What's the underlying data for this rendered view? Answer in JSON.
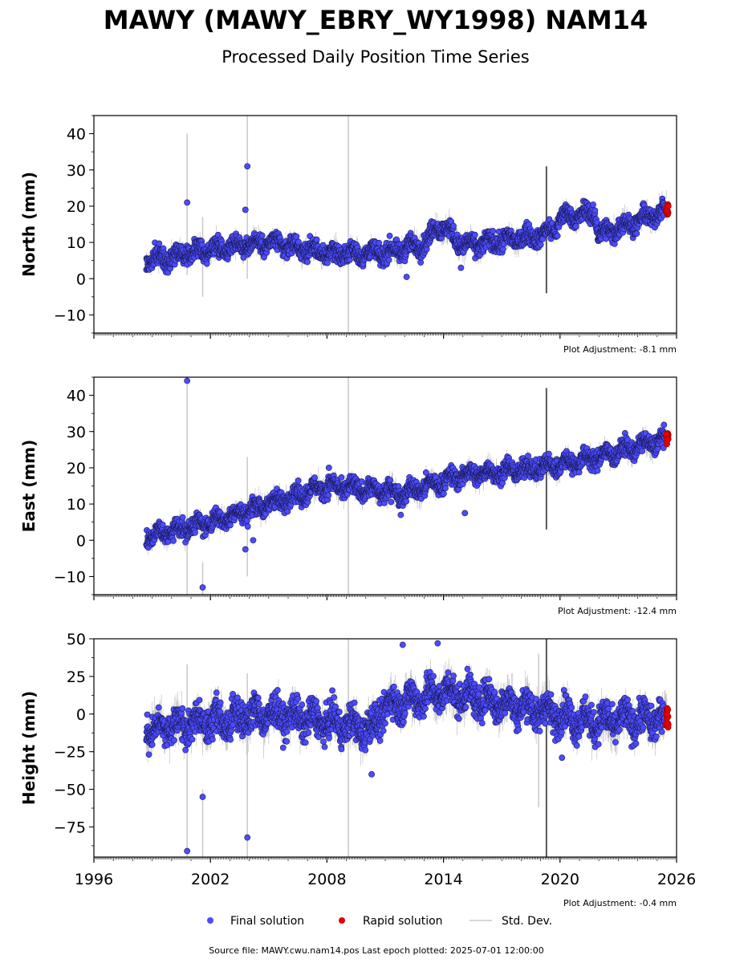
{
  "title": "MAWY (MAWY_EBRY_WY1998) NAM14",
  "subtitle": "Processed Daily Position Time Series",
  "legend": {
    "final": "Final solution",
    "rapid": "Rapid solution",
    "std": "Std. Dev."
  },
  "colors": {
    "final": "#4b4bff",
    "rapid": "#e50000",
    "std": "#c8c8c8"
  },
  "source_note": "Source file: MAWY.cwu.nam14.pos  Last epoch plotted: 2025-07-01 12:00:00",
  "chart_data": [
    {
      "type": "scatter",
      "ylabel": "North (mm)",
      "adjustment": "Plot Adjustment: -8.1 mm",
      "ylim": [
        -15,
        45
      ],
      "yticks": [
        -10,
        0,
        10,
        20,
        30,
        40
      ],
      "xlim": [
        1996,
        2026
      ],
      "xticks": [
        1996,
        2002,
        2008,
        2014,
        2020,
        2026
      ],
      "start": 1998.7,
      "end": 2025.5,
      "trend": [
        [
          1998.7,
          5
        ],
        [
          2003,
          9
        ],
        [
          2005,
          10
        ],
        [
          2008,
          7
        ],
        [
          2011,
          7
        ],
        [
          2013.2,
          10
        ],
        [
          2013.6,
          15
        ],
        [
          2014.3,
          13
        ],
        [
          2015,
          9
        ],
        [
          2019,
          12
        ],
        [
          2019.8,
          14
        ],
        [
          2020,
          17
        ],
        [
          2021.8,
          18
        ],
        [
          2022,
          12
        ],
        [
          2025.5,
          19
        ]
      ],
      "scatter_amp": 3,
      "outliers": [
        [
          2000.8,
          21
        ],
        [
          2003.9,
          31
        ],
        [
          2003.8,
          19
        ],
        [
          2012.1,
          0.5
        ],
        [
          2014.9,
          3
        ]
      ],
      "spikes": [
        [
          2000.8,
          1,
          40
        ],
        [
          2001.6,
          -5,
          17
        ],
        [
          2003.9,
          0,
          45
        ],
        [
          2009.1,
          -15,
          45
        ],
        [
          2019.3,
          -4,
          31
        ]
      ],
      "rapid": [
        2025.45,
        19,
        1.5
      ]
    },
    {
      "type": "scatter",
      "ylabel": "East (mm)",
      "adjustment": "Plot Adjustment: -12.4 mm",
      "ylim": [
        -15,
        45
      ],
      "yticks": [
        -10,
        0,
        10,
        20,
        30,
        40
      ],
      "xlim": [
        1996,
        2026
      ],
      "xticks": [
        1996,
        2002,
        2008,
        2014,
        2020,
        2026
      ],
      "start": 1998.7,
      "end": 2025.5,
      "trend": [
        [
          1998.7,
          1
        ],
        [
          2002,
          5
        ],
        [
          2005,
          10
        ],
        [
          2008,
          15
        ],
        [
          2012,
          13
        ],
        [
          2015,
          18
        ],
        [
          2019,
          20
        ],
        [
          2022,
          23
        ],
        [
          2025.5,
          28
        ]
      ],
      "scatter_amp": 3,
      "outliers": [
        [
          2000.8,
          44
        ],
        [
          2001.6,
          -13
        ],
        [
          2003.8,
          -2.5
        ],
        [
          2004.2,
          0
        ],
        [
          2008.1,
          20
        ],
        [
          2015.1,
          7.5
        ],
        [
          2011.8,
          7
        ]
      ],
      "spikes": [
        [
          2000.8,
          -15,
          45
        ],
        [
          2001.6,
          -15,
          -6
        ],
        [
          2003.9,
          -10,
          23
        ],
        [
          2009.1,
          -15,
          45
        ],
        [
          2019.3,
          3,
          42
        ]
      ],
      "rapid": [
        2025.45,
        28,
        1.5
      ]
    },
    {
      "type": "scatter",
      "ylabel": "Height (mm)",
      "adjustment": "Plot Adjustment: -0.4 mm",
      "ylim": [
        -95,
        50
      ],
      "yticks": [
        -75,
        -50,
        -25,
        0,
        25,
        50
      ],
      "xlim": [
        1996,
        2026
      ],
      "xticks": [
        1996,
        2002,
        2008,
        2014,
        2020,
        2026
      ],
      "start": 1998.7,
      "end": 2025.5,
      "trend": [
        [
          1998.7,
          -10
        ],
        [
          2005,
          0
        ],
        [
          2008,
          -5
        ],
        [
          2010.3,
          -10
        ],
        [
          2011,
          5
        ],
        [
          2014,
          15
        ],
        [
          2018,
          5
        ],
        [
          2021.5,
          -5
        ],
        [
          2025.5,
          -3
        ]
      ],
      "scatter_amp": 13,
      "outliers": [
        [
          2000.8,
          -91
        ],
        [
          2001.6,
          -55
        ],
        [
          2003.9,
          -82
        ],
        [
          2011.9,
          46
        ],
        [
          2013.7,
          47
        ],
        [
          2020.1,
          -29
        ],
        [
          2010.3,
          -40
        ]
      ],
      "spikes": [
        [
          2000.8,
          -95,
          33
        ],
        [
          2001.6,
          -95,
          -50
        ],
        [
          2003.9,
          -95,
          27
        ],
        [
          2009.1,
          -95,
          50
        ],
        [
          2019.3,
          -95,
          50
        ],
        [
          2018.9,
          -62,
          40
        ]
      ],
      "rapid": [
        2025.45,
        -3,
        8
      ]
    }
  ]
}
